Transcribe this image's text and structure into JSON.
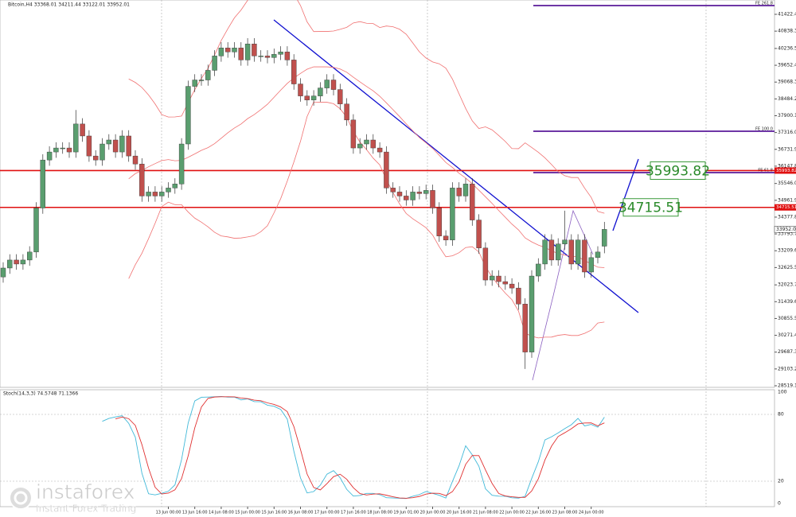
{
  "header": {
    "title": "Bitcoin,H4 33368.01 34211.44 33122.01 33952.01"
  },
  "price_axis": {
    "ticks": [
      {
        "value": 41422.44,
        "label": "41422.44"
      },
      {
        "value": 40838.3,
        "label": "40838.30"
      },
      {
        "value": 40236.5,
        "label": "40236.50"
      },
      {
        "value": 39652.4,
        "label": "39652.40"
      },
      {
        "value": 39068.3,
        "label": "39068.30"
      },
      {
        "value": 38484.2,
        "label": "38484.20"
      },
      {
        "value": 37900.1,
        "label": "37900.10"
      },
      {
        "value": 37316.0,
        "label": "37316.00"
      },
      {
        "value": 36731.9,
        "label": "36731.90"
      },
      {
        "value": 36147.8,
        "label": "36147.80"
      },
      {
        "value": 35546.0,
        "label": "35546.00"
      },
      {
        "value": 34961.9,
        "label": "34961.90"
      },
      {
        "value": 34377.8,
        "label": "34377.80"
      },
      {
        "value": 33793.7,
        "label": "33793.70"
      },
      {
        "value": 33209.6,
        "label": "33209.60"
      },
      {
        "value": 32625.5,
        "label": "32625.50"
      },
      {
        "value": 32023.7,
        "label": "32023.70"
      },
      {
        "value": 31439.6,
        "label": "31439.60"
      },
      {
        "value": 30855.5,
        "label": "30855.50"
      },
      {
        "value": 30271.4,
        "label": "30271.40"
      },
      {
        "value": 29687.3,
        "label": "29687.30"
      },
      {
        "value": 29103.2,
        "label": "29103.20"
      },
      {
        "value": 28519.1,
        "label": "28519.10"
      }
    ],
    "current": {
      "value": 33952.01,
      "label": "33952.01"
    }
  },
  "levels": [
    {
      "value": 35993.82,
      "label": "35993.82"
    },
    {
      "value": 34715.51,
      "label": "34715.51"
    }
  ],
  "fibo": [
    "FE 261.8",
    "FE 100.0",
    "FE 61.8"
  ],
  "candles": [
    [
      32300,
      32809,
      32100,
      32609
    ],
    [
      32609,
      33087,
      32409,
      32887
    ],
    [
      32887,
      33087,
      32548,
      32748
    ],
    [
      32748,
      33087,
      32548,
      32887
    ],
    [
      32887,
      33365,
      32687,
      33165
    ],
    [
      33165,
      34894,
      32965,
      34694
    ],
    [
      34694,
      36562,
      34494,
      36362
    ],
    [
      36362,
      36840,
      36162,
      36640
    ],
    [
      36640,
      36979,
      36440,
      36779
    ],
    [
      36779,
      36979,
      36579,
      36779
    ],
    [
      36779,
      36979,
      36440,
      36640
    ],
    [
      36640,
      38100,
      36440,
      37613
    ],
    [
      37613,
      37813,
      36996,
      37196
    ],
    [
      37196,
      37396,
      36301,
      36501
    ],
    [
      36501,
      36701,
      36162,
      36362
    ],
    [
      36362,
      37118,
      36162,
      36918
    ],
    [
      36918,
      37257,
      36718,
      37057
    ],
    [
      37057,
      37257,
      36440,
      36640
    ],
    [
      36640,
      37396,
      36440,
      37196
    ],
    [
      37196,
      37396,
      36301,
      36501
    ],
    [
      36501,
      36701,
      36023,
      36223
    ],
    [
      36223,
      36423,
      34911,
      35111
    ],
    [
      35111,
      35450,
      34911,
      35250
    ],
    [
      35250,
      35450,
      34911,
      35111
    ],
    [
      35111,
      35450,
      34911,
      35250
    ],
    [
      35250,
      35589,
      35050,
      35389
    ],
    [
      35389,
      35728,
      35189,
      35528
    ],
    [
      35528,
      37118,
      35328,
      36918
    ],
    [
      36918,
      39120,
      36718,
      38920
    ],
    [
      38920,
      39342,
      38720,
      39142
    ],
    [
      39142,
      39342,
      38942,
      39142
    ],
    [
      39142,
      39676,
      38942,
      39476
    ],
    [
      39476,
      40176,
      39276,
      39976
    ],
    [
      39976,
      40454,
      39776,
      40254
    ],
    [
      40254,
      40454,
      39915,
      40115
    ],
    [
      40115,
      40454,
      39915,
      40254
    ],
    [
      40254,
      40454,
      39637,
      39837
    ],
    [
      39837,
      40593,
      39637,
      40393
    ],
    [
      40393,
      40593,
      39776,
      39976
    ],
    [
      39976,
      40176,
      39776,
      39976
    ],
    [
      39976,
      40176,
      39721,
      39921
    ],
    [
      39921,
      40232,
      39721,
      40032
    ],
    [
      40032,
      40315,
      39832,
      40115
    ],
    [
      40115,
      40315,
      39637,
      39837
    ],
    [
      39837,
      40037,
      38803,
      39003
    ],
    [
      39003,
      39203,
      38386,
      38586
    ],
    [
      38586,
      38786,
      38247,
      38447
    ],
    [
      38447,
      38786,
      38247,
      38586
    ],
    [
      38586,
      39064,
      38386,
      38864
    ],
    [
      38864,
      39342,
      38664,
      39142
    ],
    [
      39142,
      39342,
      38609,
      38809
    ],
    [
      38809,
      39009,
      38108,
      38308
    ],
    [
      38308,
      38508,
      37552,
      37752
    ],
    [
      37752,
      37952,
      36579,
      36779
    ],
    [
      36779,
      37118,
      36579,
      36918
    ],
    [
      36918,
      37257,
      36718,
      37057
    ],
    [
      37057,
      37257,
      36579,
      36779
    ],
    [
      36779,
      36979,
      36440,
      36640
    ],
    [
      36640,
      36840,
      35189,
      35389
    ],
    [
      35389,
      35589,
      35050,
      35250
    ],
    [
      35250,
      35450,
      34911,
      35111
    ],
    [
      35111,
      35311,
      34772,
      34972
    ],
    [
      34972,
      35450,
      34772,
      35250
    ],
    [
      35250,
      35450,
      34995,
      35195
    ],
    [
      35195,
      35506,
      34995,
      35306
    ],
    [
      35306,
      35506,
      34494,
      34694
    ],
    [
      34694,
      34894,
      33521,
      33721
    ],
    [
      33721,
      33921,
      33382,
      33582
    ],
    [
      33582,
      35589,
      33382,
      35389
    ],
    [
      35389,
      35589,
      34911,
      35111
    ],
    [
      35111,
      35728,
      34911,
      35528
    ],
    [
      35528,
      35728,
      34077,
      34277
    ],
    [
      34277,
      34477,
      33104,
      33304
    ],
    [
      33304,
      33504,
      31992,
      32192
    ],
    [
      32192,
      32531,
      31992,
      32331
    ],
    [
      32331,
      32531,
      31937,
      32137
    ],
    [
      32137,
      32337,
      31853,
      32053
    ],
    [
      32053,
      32253,
      31714,
      31914
    ],
    [
      31914,
      32114,
      31158,
      31358
    ],
    [
      31358,
      31558,
      29103,
      29690
    ],
    [
      29690,
      32531,
      29490,
      32331
    ],
    [
      32331,
      32948,
      32131,
      32748
    ],
    [
      32748,
      33782,
      32548,
      33582
    ],
    [
      33582,
      33782,
      32687,
      32887
    ],
    [
      32887,
      33643,
      32687,
      33443
    ],
    [
      33443,
      34600,
      33243,
      33582
    ],
    [
      33582,
      33782,
      32548,
      32748
    ],
    [
      32748,
      33782,
      32548,
      33582
    ],
    [
      33582,
      33782,
      32270,
      32470
    ],
    [
      32470,
      33171,
      32270,
      32971
    ],
    [
      32971,
      33365,
      32771,
      33165
    ],
    [
      33368.01,
      34211.44,
      33122.01,
      33952.01
    ]
  ],
  "stochastic": {
    "title": "Stoch(14,3,3) 74.5748 71.1366",
    "ticks": [
      100,
      80,
      20,
      0
    ]
  },
  "time_axis": [
    {
      "label": "13 Jun 00:00",
      "index": 25
    },
    {
      "label": "13 Jun 16:00",
      "index": 29
    },
    {
      "label": "14 Jun 08:00",
      "index": 33
    },
    {
      "label": "15 Jun 00:00",
      "index": 37
    },
    {
      "label": "15 Jun 16:00",
      "index": 41
    },
    {
      "label": "16 Jun 08:00",
      "index": 45
    },
    {
      "label": "17 Jun 00:00",
      "index": 49
    },
    {
      "label": "17 Jun 16:00",
      "index": 53
    },
    {
      "label": "18 Jun 08:00",
      "index": 57
    },
    {
      "label": "19 Jun 01:00",
      "index": 61
    },
    {
      "label": "20 Jun 00:00",
      "index": 65
    },
    {
      "label": "20 Jun 16:00",
      "index": 69
    },
    {
      "label": "21 Jun 08:00",
      "index": 73
    },
    {
      "label": "22 Jun 00:00",
      "index": 77
    },
    {
      "label": "22 Jun 16:00",
      "index": 81
    },
    {
      "label": "23 Jun 08:00",
      "index": 85
    },
    {
      "label": "24 Jun 00:00",
      "index": 89
    }
  ],
  "logo": {
    "name": "instaforex",
    "tagline": "Instant Forex Trading"
  }
}
